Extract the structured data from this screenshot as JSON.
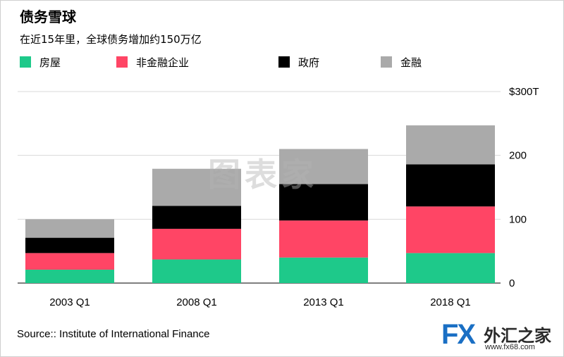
{
  "title": "债务雪球",
  "subtitle": "在近15年里，全球债务增加约150万亿",
  "source": "Source:: Institute of International Finance",
  "watermark": "图表家",
  "logo": {
    "fx": "FX",
    "cn": "外汇之家",
    "url": "www.fx68.com"
  },
  "colors": {
    "housing": "#1ec98a",
    "nonfin": "#ff4565",
    "government": "#000000",
    "financial": "#aaaaaa"
  },
  "chart_data": {
    "type": "bar",
    "stacked": true,
    "categories": [
      "2003 Q1",
      "2008 Q1",
      "2013 Q1",
      "2018 Q1"
    ],
    "series": [
      {
        "name": "房屋",
        "color": "#1ec98a",
        "values": [
          21,
          37,
          40,
          47
        ]
      },
      {
        "name": "非金融企业",
        "color": "#ff4565",
        "values": [
          26,
          48,
          58,
          73
        ]
      },
      {
        "name": "政府",
        "color": "#000000",
        "values": [
          24,
          36,
          57,
          66
        ]
      },
      {
        "name": "金融",
        "color": "#aaaaaa",
        "values": [
          29,
          58,
          55,
          61
        ]
      }
    ],
    "ylim": [
      0,
      300
    ],
    "yticks": [
      {
        "value": 0,
        "label": "0"
      },
      {
        "value": 100,
        "label": "100"
      },
      {
        "value": 200,
        "label": "200"
      },
      {
        "value": 300,
        "label": "$300T"
      }
    ],
    "grid": true,
    "legend": "top-left"
  }
}
